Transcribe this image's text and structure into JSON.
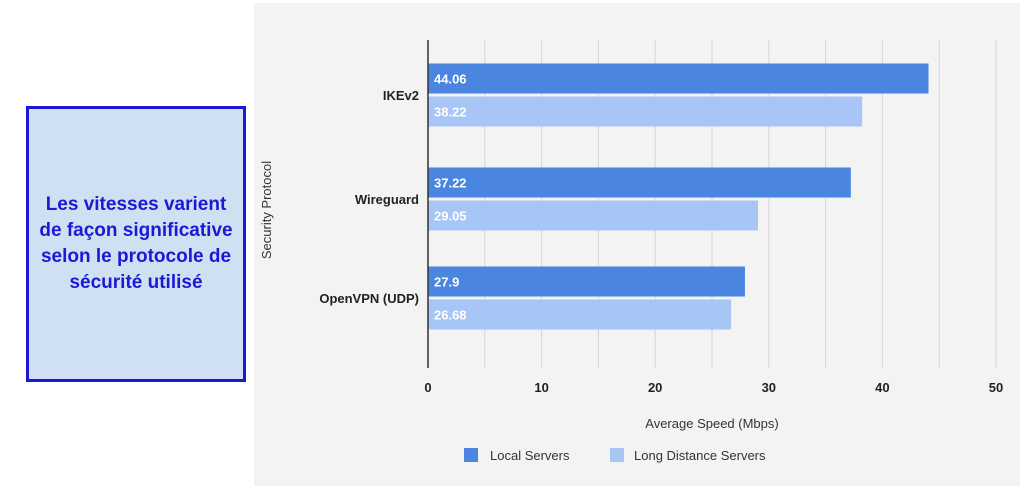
{
  "callout": {
    "text": "Les vitesses varient de façon significative selon le protocole de sécurité utilisé",
    "border_color": "#1a1ad6",
    "background_color": "#cfe0f3",
    "text_color": "#1a1ad6"
  },
  "chart_data": {
    "type": "bar",
    "orientation": "horizontal",
    "title": "",
    "xlabel": "Average Speed (Mbps)",
    "ylabel": "Security Protocol",
    "xlim": [
      0,
      50
    ],
    "xticks": [
      0,
      10,
      20,
      30,
      40,
      50
    ],
    "grid": true,
    "legend_position": "bottom",
    "categories": [
      "IKEv2",
      "Wireguard",
      "OpenVPN (UDP)"
    ],
    "series": [
      {
        "name": "Local Servers",
        "color": "#4a86e0",
        "values": [
          44.06,
          37.22,
          27.9
        ],
        "labels": [
          "44.06",
          "37.22",
          "27.9"
        ]
      },
      {
        "name": "Long Distance Servers",
        "color": "#a7c5f5",
        "values": [
          38.22,
          29.05,
          26.68
        ],
        "labels": [
          "38.22",
          "29.05",
          "26.68"
        ]
      }
    ]
  }
}
